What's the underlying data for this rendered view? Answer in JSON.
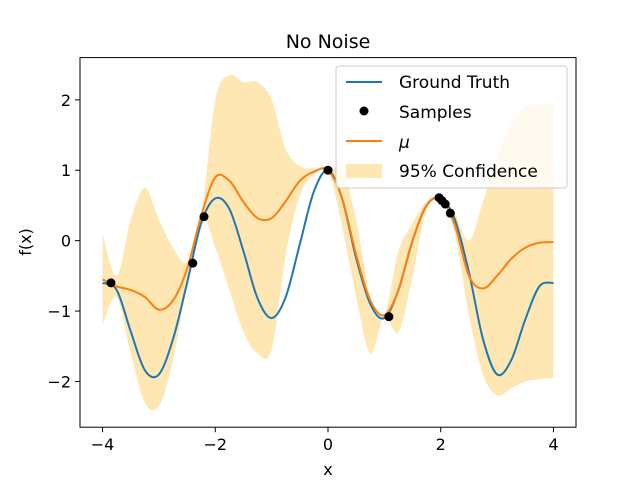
{
  "chart_data": {
    "type": "line",
    "title": "No Noise",
    "xlabel": "x",
    "ylabel": "f(x)",
    "xlim": [
      -4.4,
      4.4
    ],
    "ylim": [
      -2.65,
      2.6
    ],
    "x_ticks": [
      -4,
      -2,
      0,
      2,
      4
    ],
    "x_tick_labels": [
      "−4",
      "−2",
      "0",
      "2",
      "4"
    ],
    "y_ticks": [
      -2,
      -1,
      0,
      1,
      2
    ],
    "y_tick_labels": [
      "−2",
      "−1",
      "0",
      "1",
      "2"
    ],
    "grid": false,
    "legend_position": "top-right",
    "colors": {
      "ground_truth": "#1f77b4",
      "mu": "#ff7f0e",
      "confidence": "#ffe3a6",
      "samples": "#000000"
    },
    "series": [
      {
        "name": "Ground Truth",
        "kind": "line",
        "x": [
          -4.0,
          -3.75,
          -3.5,
          -3.25,
          -3.0,
          -2.75,
          -2.5,
          -2.25,
          -2.0,
          -1.75,
          -1.5,
          -1.25,
          -1.0,
          -0.75,
          -0.5,
          -0.25,
          0.0,
          0.25,
          0.5,
          0.75,
          1.0,
          1.25,
          1.5,
          1.75,
          2.0,
          2.25,
          2.5,
          2.75,
          3.0,
          3.25,
          3.5,
          3.75,
          4.0
        ],
        "y": [
          -0.6,
          -0.7,
          -1.29,
          -1.84,
          -1.9,
          -1.4,
          -0.6,
          0.25,
          0.6,
          0.45,
          -0.15,
          -0.82,
          -1.1,
          -0.8,
          -0.05,
          0.7,
          1.0,
          0.6,
          -0.25,
          -0.9,
          -1.1,
          -0.7,
          0.0,
          0.5,
          0.6,
          0.3,
          -0.45,
          -1.4,
          -1.9,
          -1.7,
          -1.12,
          -0.65,
          -0.6
        ]
      },
      {
        "name": "Samples",
        "kind": "scatter",
        "x": [
          -3.85,
          -2.4,
          -2.2,
          0.0,
          1.08,
          1.97,
          2.02,
          2.08,
          2.17
        ],
        "y": [
          -0.6,
          -0.32,
          0.34,
          1.0,
          -1.08,
          0.61,
          0.57,
          0.52,
          0.39
        ]
      },
      {
        "name": "μ",
        "kind": "line",
        "x": [
          -4.0,
          -3.75,
          -3.5,
          -3.25,
          -3.0,
          -2.75,
          -2.5,
          -2.25,
          -2.0,
          -1.75,
          -1.5,
          -1.25,
          -1.0,
          -0.75,
          -0.5,
          -0.25,
          0.0,
          0.25,
          0.5,
          0.75,
          1.0,
          1.25,
          1.5,
          1.75,
          2.0,
          2.25,
          2.5,
          2.75,
          3.0,
          3.25,
          3.5,
          3.75,
          4.0
        ],
        "y": [
          -0.55,
          -0.65,
          -0.7,
          -0.8,
          -0.98,
          -0.85,
          -0.4,
          0.35,
          0.9,
          0.85,
          0.55,
          0.32,
          0.32,
          0.56,
          0.85,
          0.98,
          1.0,
          0.6,
          -0.2,
          -0.85,
          -1.06,
          -0.7,
          0.0,
          0.5,
          0.6,
          0.22,
          -0.5,
          -0.68,
          -0.5,
          -0.26,
          -0.1,
          -0.03,
          -0.02
        ]
      },
      {
        "name": "95% Confidence",
        "kind": "band",
        "x": [
          -4.0,
          -3.75,
          -3.5,
          -3.25,
          -3.0,
          -2.75,
          -2.5,
          -2.25,
          -2.0,
          -1.75,
          -1.5,
          -1.25,
          -1.0,
          -0.75,
          -0.5,
          -0.25,
          0.0,
          0.25,
          0.5,
          0.75,
          1.0,
          1.25,
          1.5,
          1.75,
          2.0,
          2.25,
          2.5,
          2.75,
          3.0,
          3.25,
          3.5,
          3.75,
          4.0
        ],
        "upper": [
          0.1,
          -0.5,
          0.3,
          0.75,
          0.3,
          -0.1,
          -0.3,
          0.35,
          2.0,
          2.35,
          2.25,
          2.25,
          2.0,
          1.3,
          1.06,
          1.02,
          1.0,
          1.0,
          0.3,
          -0.8,
          -1.05,
          -0.15,
          0.25,
          0.55,
          0.6,
          0.4,
          0.0,
          0.55,
          1.2,
          1.65,
          1.9,
          1.93,
          1.95
        ]
      },
      {
        "name": "95% Confidence lower",
        "kind": "band_lower",
        "lower": [
          -1.2,
          -0.8,
          -1.6,
          -2.3,
          -2.35,
          -1.7,
          -0.6,
          0.35,
          -0.1,
          -0.7,
          -1.3,
          -1.6,
          -1.55,
          -0.2,
          0.64,
          0.94,
          1.0,
          0.2,
          -0.8,
          -1.6,
          -1.07,
          -1.3,
          -0.5,
          0.45,
          0.6,
          0.1,
          -1.05,
          -1.9,
          -2.2,
          -2.1,
          -2.0,
          -1.97,
          -1.95
        ]
      }
    ]
  }
}
